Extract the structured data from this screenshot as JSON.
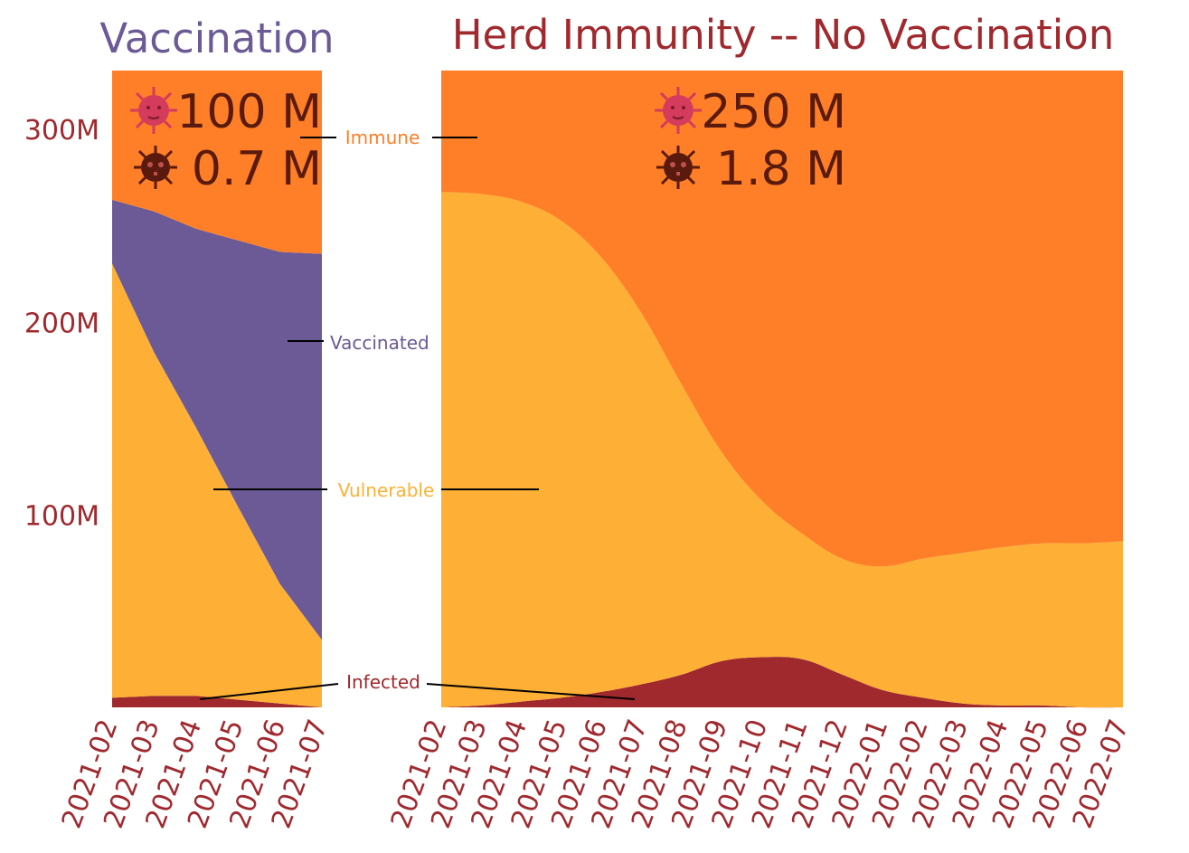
{
  "colors": {
    "immune": "#fe7f28",
    "vaccinated": "#6b5a95",
    "vulnerable": "#fdb035",
    "infected": "#a0292e",
    "title_left": "#6b5a95",
    "title_right": "#a0292e",
    "tick": "#a0292e",
    "stat_text": "#5a1a0e",
    "virus_icon": "#d43b5c",
    "skull_icon": "#5a1a0e"
  },
  "labels": {
    "immune": "Immune",
    "vaccinated": "Vaccinated",
    "vulnerable": "Vulnerable",
    "infected": "Infected"
  },
  "chart_data": [
    {
      "type": "area",
      "stacked": true,
      "title": "Vaccination",
      "ylim": [
        0,
        330
      ],
      "yticks": [
        {
          "value": 100,
          "label": "100M"
        },
        {
          "value": 200,
          "label": "200M"
        },
        {
          "value": 300,
          "label": "300M"
        }
      ],
      "x": [
        "2021-02",
        "2021-03",
        "2021-04",
        "2021-05",
        "2021-06",
        "2021-07"
      ],
      "series": [
        {
          "name": "Infected",
          "values": [
            5,
            6,
            6,
            4,
            2,
            0
          ]
        },
        {
          "name": "Vulnerable",
          "values": [
            225,
            178,
            139,
            100,
            62,
            35
          ]
        },
        {
          "name": "Vaccinated",
          "values": [
            33,
            73,
            103,
            138,
            172,
            200
          ]
        },
        {
          "name": "Immune",
          "values": [
            67,
            73,
            82,
            88,
            94,
            95
          ]
        }
      ],
      "stats": {
        "infections": "100 M",
        "deaths": "0.7 M"
      }
    },
    {
      "type": "area",
      "stacked": true,
      "title": "Herd Immunity -- No Vaccination",
      "ylim": [
        0,
        330
      ],
      "x": [
        "2021-02",
        "2021-03",
        "2021-04",
        "2021-05",
        "2021-06",
        "2021-07",
        "2021-08",
        "2021-09",
        "2021-10",
        "2021-11",
        "2021-12",
        "2022-01",
        "2022-02",
        "2022-03",
        "2022-04",
        "2022-05",
        "2022-06",
        "2022-07"
      ],
      "series": [
        {
          "name": "Infected",
          "values": [
            0,
            1,
            3,
            5,
            8,
            12,
            17,
            24,
            26,
            25,
            17,
            9,
            5,
            2,
            1,
            1,
            0,
            0
          ]
        },
        {
          "name": "Vulnerable",
          "values": [
            267,
            265,
            259,
            247,
            225,
            192,
            150,
            108,
            81,
            65,
            60,
            64,
            72,
            78,
            82,
            84,
            85,
            86
          ]
        },
        {
          "name": "Vaccinated",
          "values": [
            0,
            0,
            0,
            0,
            0,
            0,
            0,
            0,
            0,
            0,
            0,
            0,
            0,
            0,
            0,
            0,
            0,
            0
          ]
        },
        {
          "name": "Immune",
          "values": [
            63,
            64,
            68,
            78,
            97,
            126,
            163,
            198,
            223,
            240,
            253,
            257,
            253,
            250,
            247,
            245,
            245,
            244
          ]
        }
      ],
      "stats": {
        "infections": "250 M",
        "deaths": "1.8 M"
      }
    }
  ]
}
